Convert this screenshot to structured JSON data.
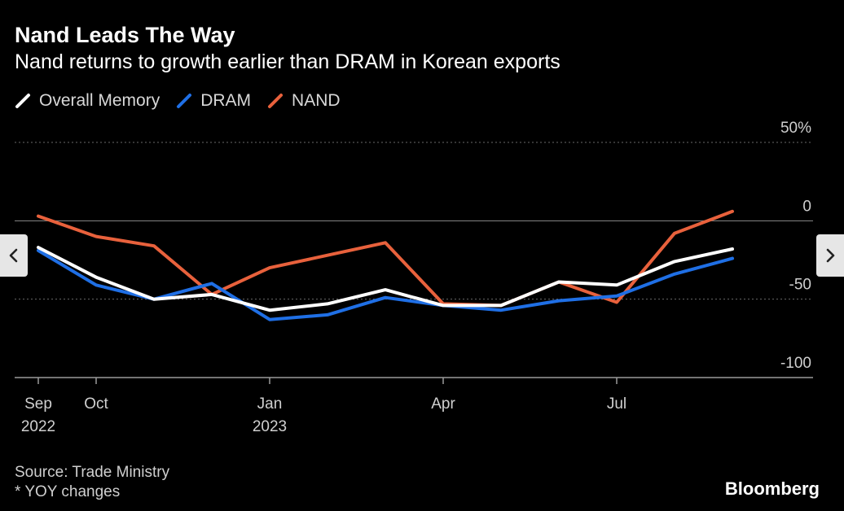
{
  "header": {
    "title": "Nand Leads The Way",
    "subtitle": "Nand returns to growth earlier than DRAM in Korean exports"
  },
  "legend": [
    {
      "label": "Overall Memory",
      "color": "#ffffff"
    },
    {
      "label": "DRAM",
      "color": "#1f6fe5"
    },
    {
      "label": "NAND",
      "color": "#e8613c"
    }
  ],
  "footer": {
    "source": "Source: Trade Ministry",
    "note": "* YOY changes",
    "brand": "Bloomberg"
  },
  "navigation": {
    "prev_icon": "chevron-left-icon",
    "next_icon": "chevron-right-icon"
  },
  "chart_data": {
    "type": "line",
    "title": "Nand Leads The Way",
    "subtitle": "Nand returns to growth earlier than DRAM in Korean exports",
    "xlabel": "",
    "ylabel": "",
    "x": [
      "2022-09",
      "2022-10",
      "2022-11",
      "2022-12",
      "2023-01",
      "2023-02",
      "2023-03",
      "2023-04",
      "2023-05",
      "2023-06",
      "2023-07",
      "2023-08",
      "2023-09"
    ],
    "x_ticks": [
      {
        "x": "2022-09",
        "label": "Sep",
        "sublabel": "2022"
      },
      {
        "x": "2022-10",
        "label": "Oct",
        "sublabel": ""
      },
      {
        "x": "2023-01",
        "label": "Jan",
        "sublabel": "2023"
      },
      {
        "x": "2023-04",
        "label": "Apr",
        "sublabel": ""
      },
      {
        "x": "2023-07",
        "label": "Jul",
        "sublabel": ""
      }
    ],
    "y_ticks": [
      {
        "value": 50,
        "label": "50%"
      },
      {
        "value": 0,
        "label": "0"
      },
      {
        "value": -50,
        "label": "-50"
      },
      {
        "value": -100,
        "label": "-100"
      }
    ],
    "ylim": [
      -100,
      50
    ],
    "grid": true,
    "series": [
      {
        "name": "Overall Memory",
        "color": "#ffffff",
        "values": [
          -17,
          -36,
          -50,
          -47,
          -57,
          -53,
          -44,
          -54,
          -54,
          -39,
          -41,
          -26,
          -18
        ]
      },
      {
        "name": "DRAM",
        "color": "#1f6fe5",
        "values": [
          -19,
          -41,
          -50,
          -40,
          -63,
          -60,
          -49,
          -54,
          -57,
          -51,
          -48,
          -34,
          -24
        ]
      },
      {
        "name": "NAND",
        "color": "#e8613c",
        "values": [
          3,
          -10,
          -16,
          -47,
          -30,
          -22,
          -14,
          -53,
          -54,
          -39,
          -52,
          -8,
          6
        ]
      }
    ]
  }
}
